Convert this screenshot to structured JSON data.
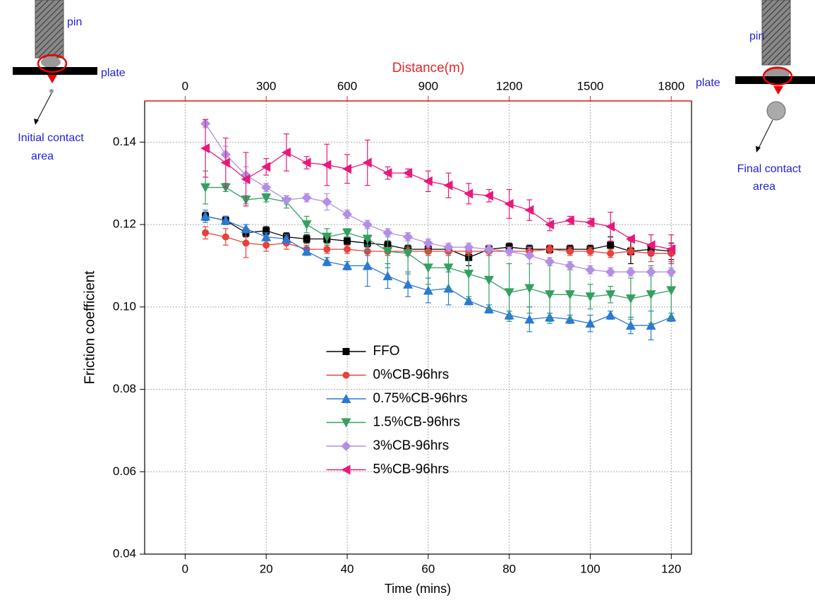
{
  "chart_data": {
    "type": "line",
    "x_label": "Time (mins)",
    "y_label": "Friction coefficient",
    "x2_label": "Distance(m)",
    "x": [
      5,
      10,
      15,
      20,
      25,
      30,
      35,
      40,
      45,
      50,
      55,
      60,
      65,
      70,
      75,
      80,
      85,
      90,
      95,
      100,
      105,
      110,
      115,
      120
    ],
    "xlim": [
      -10,
      125
    ],
    "xticks": [
      0,
      20,
      40,
      60,
      80,
      100,
      120
    ],
    "x2lim": [
      -150,
      1875
    ],
    "x2ticks": [
      0,
      300,
      600,
      900,
      1200,
      1500,
      1800
    ],
    "x2_color": "#e8262a",
    "ylim": [
      0.04,
      0.15
    ],
    "yticks": [
      {
        "value": 0.04,
        "label": "0.04"
      },
      {
        "value": 0.06,
        "label": "0.06"
      },
      {
        "value": 0.08,
        "label": "0.08"
      },
      {
        "value": 0.1,
        "label": "0.10"
      },
      {
        "value": 0.12,
        "label": "0.12"
      },
      {
        "value": 0.14,
        "label": "0.14"
      }
    ],
    "grid": true,
    "legend": "center",
    "series": [
      {
        "name": "FFO",
        "color": "#000000",
        "marker": "square",
        "values": [
          0.122,
          0.121,
          0.118,
          0.1185,
          0.117,
          0.1165,
          0.1165,
          0.116,
          0.1155,
          0.115,
          0.114,
          0.114,
          0.114,
          0.112,
          0.114,
          0.1145,
          0.114,
          0.114,
          0.114,
          0.114,
          0.115,
          0.1135,
          0.114,
          0.1135
        ],
        "errors": [
          0.001,
          0.001,
          0.001,
          0.001,
          0.001,
          0.001,
          0.001,
          0.001,
          0.001,
          0.001,
          0.001,
          0.001,
          0.001,
          0.002,
          0.001,
          0.001,
          0.001,
          0.001,
          0.001,
          0.001,
          0.002,
          0.003,
          0.001,
          0.002
        ]
      },
      {
        "name": "0%CB-96hrs",
        "color": "#e8413a",
        "marker": "circle",
        "values": [
          0.118,
          0.117,
          0.1155,
          0.115,
          0.1155,
          0.114,
          0.114,
          0.114,
          0.1135,
          0.1135,
          0.1135,
          0.1135,
          0.1135,
          0.1135,
          0.1135,
          0.1135,
          0.1135,
          0.114,
          0.1135,
          0.1135,
          0.113,
          0.1135,
          0.113,
          0.113
        ],
        "errors": [
          0.0015,
          0.002,
          0.0035,
          0.0015,
          0.0015,
          0.001,
          0.001,
          0.001,
          0.001,
          0.001,
          0.001,
          0.001,
          0.001,
          0.001,
          0.001,
          0.001,
          0.001,
          0.001,
          0.001,
          0.001,
          0.001,
          0.001,
          0.002,
          0.002
        ]
      },
      {
        "name": "0.75%CB-96hrs",
        "color": "#2a7ad5",
        "marker": "triangle-up",
        "values": [
          0.122,
          0.121,
          0.119,
          0.117,
          0.1165,
          0.1135,
          0.111,
          0.11,
          0.11,
          0.1075,
          0.1055,
          0.104,
          0.1045,
          0.1015,
          0.0995,
          0.098,
          0.097,
          0.0975,
          0.097,
          0.096,
          0.098,
          0.0955,
          0.0955,
          0.0975
        ],
        "errors": [
          0.0015,
          0.001,
          0.001,
          0.001,
          0.001,
          0.001,
          0.001,
          0.001,
          0.005,
          0.003,
          0.003,
          0.003,
          0.004,
          0.001,
          0.001,
          0.001,
          0.003,
          0.001,
          0.001,
          0.002,
          0.001,
          0.002,
          0.0035,
          0.001
        ]
      },
      {
        "name": "1.5%CB-96hrs",
        "color": "#33a060",
        "marker": "triangle-down",
        "values": [
          0.129,
          0.129,
          0.126,
          0.1265,
          0.1255,
          0.12,
          0.117,
          0.118,
          0.1165,
          0.1135,
          0.113,
          0.1095,
          0.1095,
          0.108,
          0.1065,
          0.1035,
          0.1045,
          0.103,
          0.103,
          0.1025,
          0.103,
          0.102,
          0.103,
          0.104
        ],
        "errors": [
          0.004,
          0.001,
          0.001,
          0.001,
          0.0015,
          0.002,
          0.002,
          0.001,
          0.003,
          0.004,
          0.005,
          0.004,
          0.005,
          0.006,
          0.007,
          0.007,
          0.006,
          0.007,
          0.006,
          0.003,
          0.002,
          0.005,
          0.007,
          0.007
        ]
      },
      {
        "name": "3%CB-96hrs",
        "color": "#b48ee6",
        "marker": "diamond",
        "values": [
          0.1445,
          0.137,
          0.132,
          0.129,
          0.126,
          0.1265,
          0.1255,
          0.1225,
          0.12,
          0.118,
          0.117,
          0.1155,
          0.1145,
          0.1145,
          0.114,
          0.1135,
          0.1125,
          0.111,
          0.11,
          0.109,
          0.1085,
          0.1085,
          0.1085,
          0.1085
        ],
        "errors": [
          0.001,
          0.002,
          0.002,
          0.001,
          0.001,
          0.001,
          0.002,
          0.001,
          0.001,
          0.001,
          0.001,
          0.001,
          0.001,
          0.001,
          0.001,
          0.001,
          0.002,
          0.001,
          0.001,
          0.001,
          0.001,
          0.001,
          0.001,
          0.001
        ]
      },
      {
        "name": "5%CB-96hrs",
        "color": "#e8197a",
        "marker": "triangle-left",
        "values": [
          0.1385,
          0.135,
          0.131,
          0.134,
          0.1375,
          0.135,
          0.1345,
          0.1335,
          0.135,
          0.1325,
          0.1325,
          0.1305,
          0.1295,
          0.1275,
          0.127,
          0.125,
          0.1235,
          0.12,
          0.121,
          0.1205,
          0.1195,
          0.1165,
          0.115,
          0.114
        ],
        "errors": [
          0.007,
          0.006,
          0.0065,
          0.002,
          0.0045,
          0.0015,
          0.005,
          0.0035,
          0.0055,
          0.0015,
          0.001,
          0.0025,
          0.003,
          0.0025,
          0.0015,
          0.0035,
          0.0025,
          0.0015,
          0.001,
          0.001,
          0.0035,
          0.0005,
          0.0025,
          0.0035
        ]
      }
    ]
  },
  "annotations": {
    "left": {
      "pin": "pin",
      "plate": "plate",
      "caption": [
        "Initial contact",
        "area"
      ]
    },
    "right": {
      "pin": "pin",
      "plate": "plate",
      "caption": [
        "Final contact",
        "area"
      ]
    }
  }
}
